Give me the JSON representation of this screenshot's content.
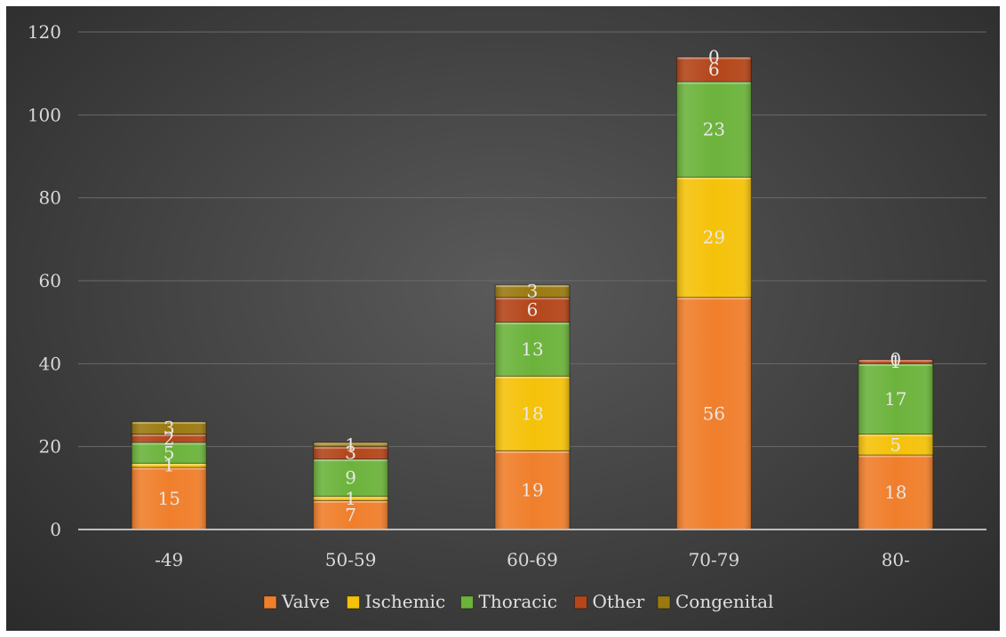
{
  "chart_data": {
    "type": "bar",
    "stacked": true,
    "categories": [
      "-49",
      "50-59",
      "60-69",
      "70-79",
      "80-"
    ],
    "series": [
      {
        "name": "Valve",
        "color": "#f07f2c",
        "values": [
          15,
          7,
          19,
          56,
          18
        ]
      },
      {
        "name": "Ischemic",
        "color": "#f5c20a",
        "values": [
          1,
          1,
          18,
          29,
          5
        ]
      },
      {
        "name": "Thoracic",
        "color": "#6cb33c",
        "values": [
          5,
          9,
          13,
          23,
          17
        ]
      },
      {
        "name": "Other",
        "color": "#b4461a",
        "values": [
          2,
          3,
          6,
          6,
          1
        ]
      },
      {
        "name": "Congenital",
        "color": "#9a7a10",
        "values": [
          3,
          1,
          3,
          0,
          0
        ]
      }
    ],
    "yticks": [
      "0",
      "20",
      "40",
      "60",
      "80",
      "100",
      "120"
    ],
    "ylim": [
      0,
      120
    ],
    "grid": true,
    "legend": "bottom",
    "title": "",
    "xlabel": "",
    "ylabel": ""
  }
}
